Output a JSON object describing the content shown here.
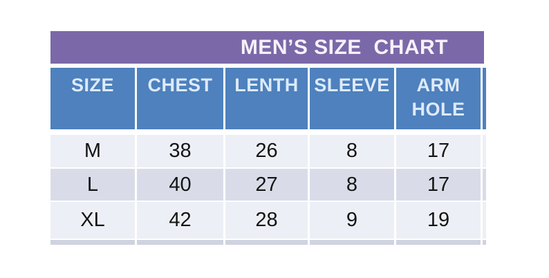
{
  "chart_data": {
    "type": "table",
    "title": "MEN’S SIZE  CHART",
    "columns": [
      "SIZE",
      "CHEST",
      "LENTH",
      "SLEEVE",
      "ARM\nHOLE"
    ],
    "rows": [
      [
        "M",
        "38",
        "26",
        "8",
        "17"
      ],
      [
        "L",
        "40",
        "27",
        "8",
        "17"
      ],
      [
        "XL",
        "42",
        "28",
        "9",
        "19"
      ]
    ]
  },
  "colors": {
    "title_bar": "#7b68a8",
    "title_text": "#f6f1fa",
    "header_bg": "#4e81bd",
    "header_text": "#ddeafa",
    "row_light": "#edeff6",
    "row_dark": "#d9dce8",
    "row_partial": "#cfd3e0",
    "data_text": "#141414",
    "background": "#ffffff"
  }
}
